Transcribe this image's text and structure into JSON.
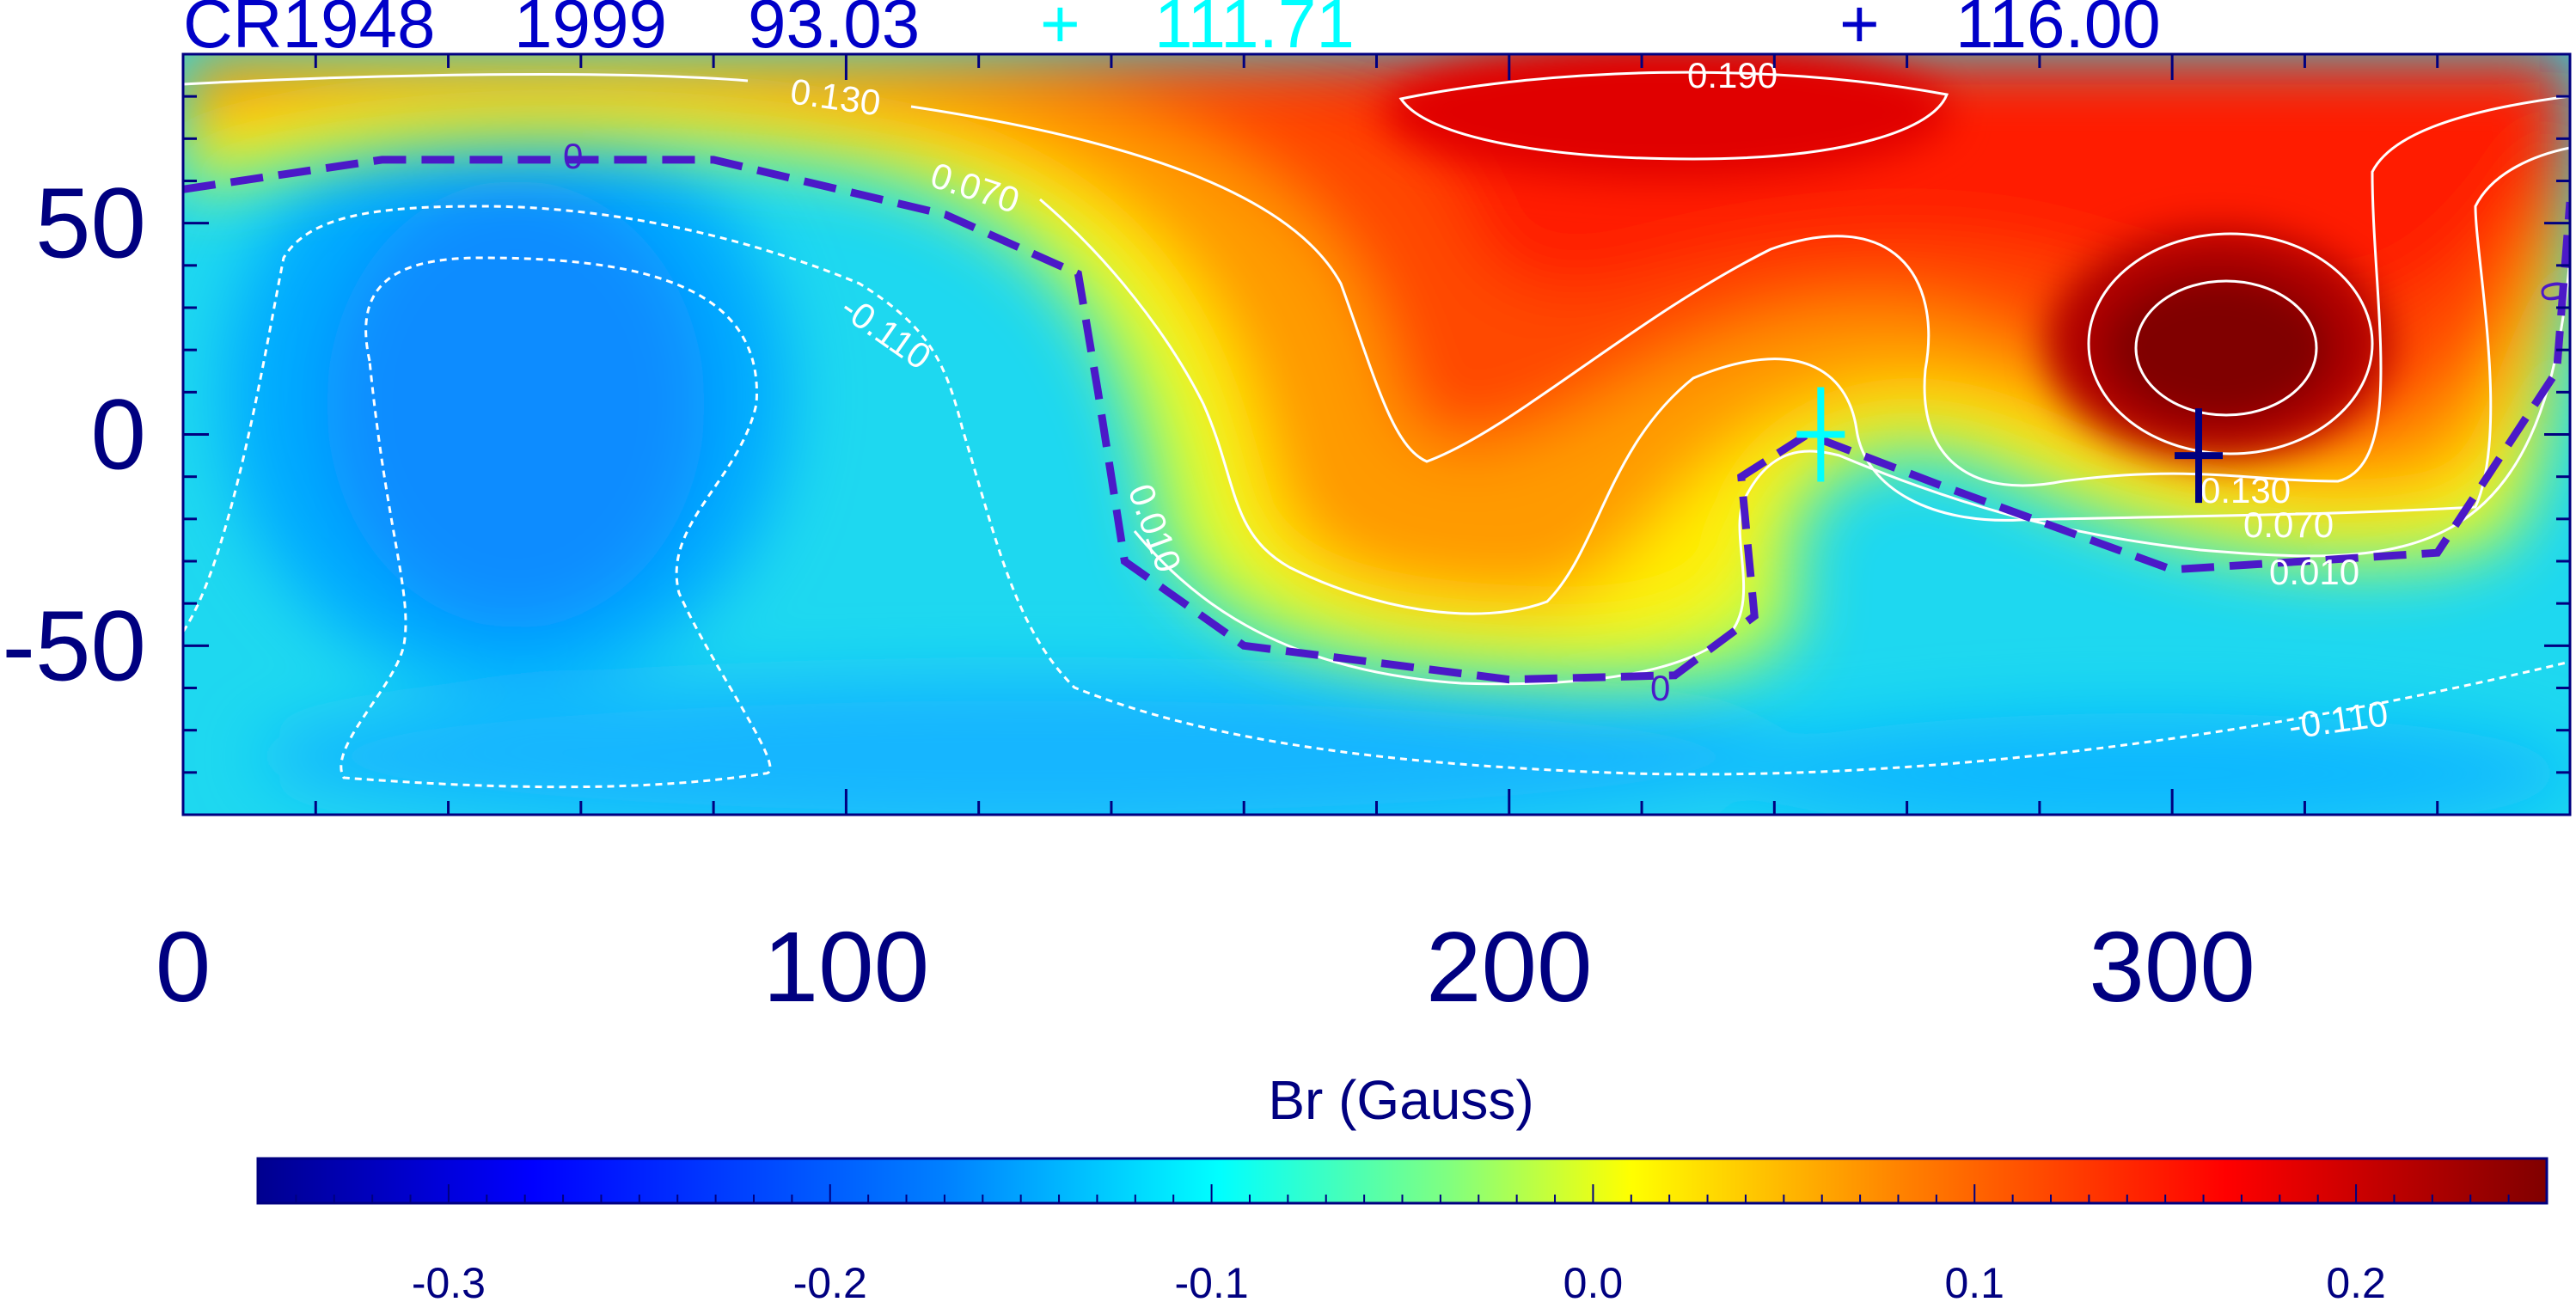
{
  "header": {
    "rotation": "CR1948",
    "year": "1999",
    "value1": "93.03",
    "marker1_symbol": "+",
    "value2": "111.71",
    "marker2_symbol": "+",
    "value3": "116.00"
  },
  "colors": {
    "axis": "#000080",
    "header_text": "#0000c8",
    "marker_cyan": "#00ffff",
    "marker_navy": "#000080",
    "neutral_line": "#4b19c8",
    "contour": "#ffffff",
    "colormap": [
      "#00008f",
      "#0000ff",
      "#0080ff",
      "#00ffff",
      "#80ff80",
      "#ffff00",
      "#ff8000",
      "#ff0000",
      "#800000"
    ]
  },
  "chart_data": {
    "type": "heatmap",
    "title": "CR1948  1999   93.03",
    "xlabel": "",
    "ylabel": "",
    "xlim": [
      0,
      360
    ],
    "ylim": [
      -90,
      90
    ],
    "x_ticks": [
      0,
      100,
      200,
      300
    ],
    "y_ticks": [
      50,
      0,
      -50
    ],
    "grid": false,
    "field_peaks": [
      {
        "lon": 55,
        "lat": 15,
        "value": -0.19
      },
      {
        "lon": 300,
        "lat": 22,
        "value": 0.25
      },
      {
        "lon": 215,
        "lat": 72,
        "value": 0.2
      }
    ],
    "contour_labels": [
      "0.190",
      "0.130",
      "0.070",
      "0",
      "-0.110",
      "0.010",
      "0",
      "0.130",
      "0.070",
      "0.010",
      "-0.110",
      "0"
    ],
    "neutral_line_lat": [
      {
        "lon": 0,
        "lat": 58
      },
      {
        "lon": 30,
        "lat": 65
      },
      {
        "lon": 80,
        "lat": 65
      },
      {
        "lon": 115,
        "lat": 52
      },
      {
        "lon": 135,
        "lat": 38
      },
      {
        "lon": 138,
        "lat": 10
      },
      {
        "lon": 142,
        "lat": -30
      },
      {
        "lon": 160,
        "lat": -50
      },
      {
        "lon": 200,
        "lat": -58
      },
      {
        "lon": 225,
        "lat": -57
      },
      {
        "lon": 237,
        "lat": -43
      },
      {
        "lon": 235,
        "lat": -10
      },
      {
        "lon": 245,
        "lat": 0
      },
      {
        "lon": 265,
        "lat": -12
      },
      {
        "lon": 300,
        "lat": -32
      },
      {
        "lon": 340,
        "lat": -28
      },
      {
        "lon": 358,
        "lat": 15
      },
      {
        "lon": 360,
        "lat": 55
      }
    ],
    "markers": [
      {
        "lon": 247,
        "lat": 0,
        "color": "cyan"
      },
      {
        "lon": 304,
        "lat": -5,
        "color": "navy"
      }
    ],
    "colorbar": {
      "label": "Br (Gauss)",
      "min": -0.35,
      "max": 0.25,
      "ticks": [
        "-0.3",
        "-0.2",
        "-0.1",
        "0.0",
        "0.1",
        "0.2"
      ],
      "tick_values": [
        -0.3,
        -0.2,
        -0.1,
        0.0,
        0.1,
        0.2
      ]
    }
  }
}
